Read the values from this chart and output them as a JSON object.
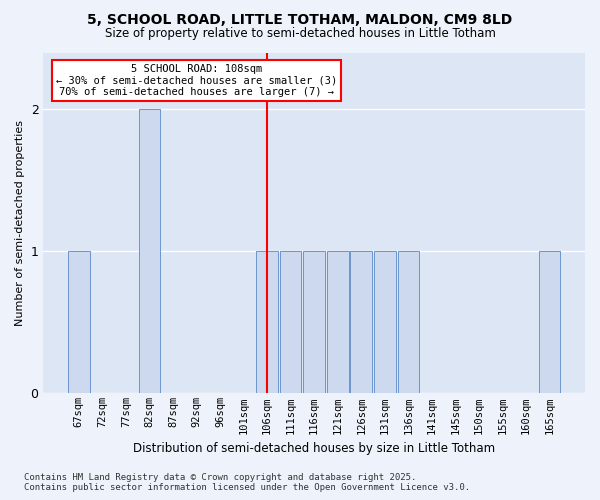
{
  "title1": "5, SCHOOL ROAD, LITTLE TOTHAM, MALDON, CM9 8LD",
  "title2": "Size of property relative to semi-detached houses in Little Totham",
  "xlabel": "Distribution of semi-detached houses by size in Little Totham",
  "ylabel": "Number of semi-detached properties",
  "categories": [
    "67sqm",
    "72sqm",
    "77sqm",
    "82sqm",
    "87sqm",
    "92sqm",
    "96sqm",
    "101sqm",
    "106sqm",
    "111sqm",
    "116sqm",
    "121sqm",
    "126sqm",
    "131sqm",
    "136sqm",
    "141sqm",
    "145sqm",
    "150sqm",
    "155sqm",
    "160sqm",
    "165sqm"
  ],
  "values": [
    1,
    0,
    0,
    2,
    0,
    0,
    0,
    0,
    1,
    1,
    1,
    1,
    1,
    1,
    1,
    0,
    0,
    0,
    0,
    0,
    1
  ],
  "bar_color": "#ccd9ee",
  "bar_edge_color": "#6b96cc",
  "property_bin_index": 8,
  "annotation_title": "5 SCHOOL ROAD: 108sqm",
  "annotation_line1": "← 30% of semi-detached houses are smaller (3)",
  "annotation_line2": "70% of semi-detached houses are larger (7) →",
  "annotation_box_color": "white",
  "annotation_box_edge": "red",
  "footer1": "Contains HM Land Registry data © Crown copyright and database right 2025.",
  "footer2": "Contains public sector information licensed under the Open Government Licence v3.0.",
  "ylim": [
    0,
    2.4
  ],
  "yticks": [
    0,
    1,
    2
  ],
  "bg_color": "#edf2fb",
  "plot_bg_color": "#dde6f5"
}
